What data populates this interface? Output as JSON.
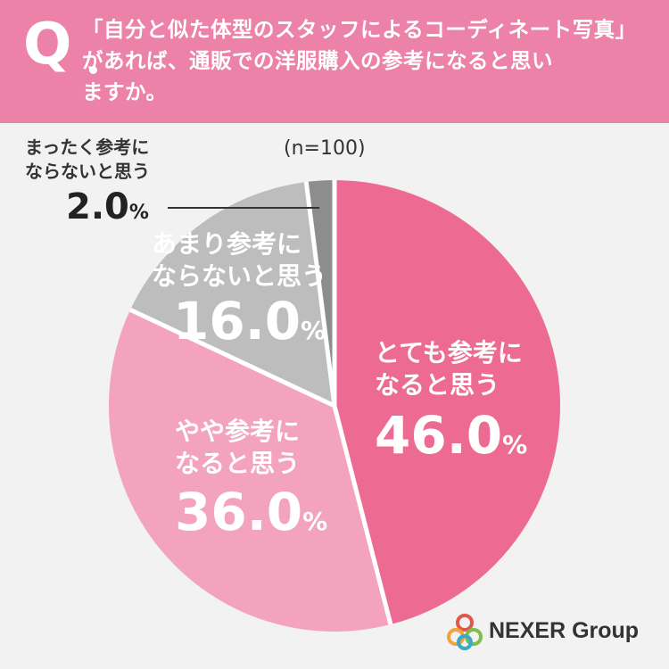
{
  "header": {
    "q": "Q",
    "question_lines": [
      "「自分と似た体型のスタッフによるコーディネート写真」",
      "があれば、通販での洋服購入の参考になると思い",
      "ますか。"
    ]
  },
  "sample": "(n=100)",
  "chart_data": {
    "type": "pie",
    "start": "12 o'clock, clockwise",
    "slices": [
      {
        "label_lines": [
          "とても参考に",
          "なると思う"
        ],
        "value": 46.0,
        "display": "46.0",
        "unit": "%",
        "color": "#ed6b92"
      },
      {
        "label_lines": [
          "やや参考に",
          "なると思う"
        ],
        "value": 36.0,
        "display": "36.0",
        "unit": "%",
        "color": "#f3a3bd"
      },
      {
        "label_lines": [
          "あまり参考に",
          "ならないと思う"
        ],
        "value": 16.0,
        "display": "16.0",
        "unit": "%",
        "color": "#bdbdbd"
      },
      {
        "label_lines": [
          "まったく参考に",
          "ならないと思う"
        ],
        "value": 2.0,
        "display": "2.0",
        "unit": "%",
        "color": "#8d8d8d"
      }
    ],
    "separator_color": "#ffffff"
  },
  "logo": {
    "text": "NEXER Group",
    "colors": [
      "#e0574f",
      "#f2a33a",
      "#7cbf4a",
      "#3aa8c9"
    ]
  }
}
